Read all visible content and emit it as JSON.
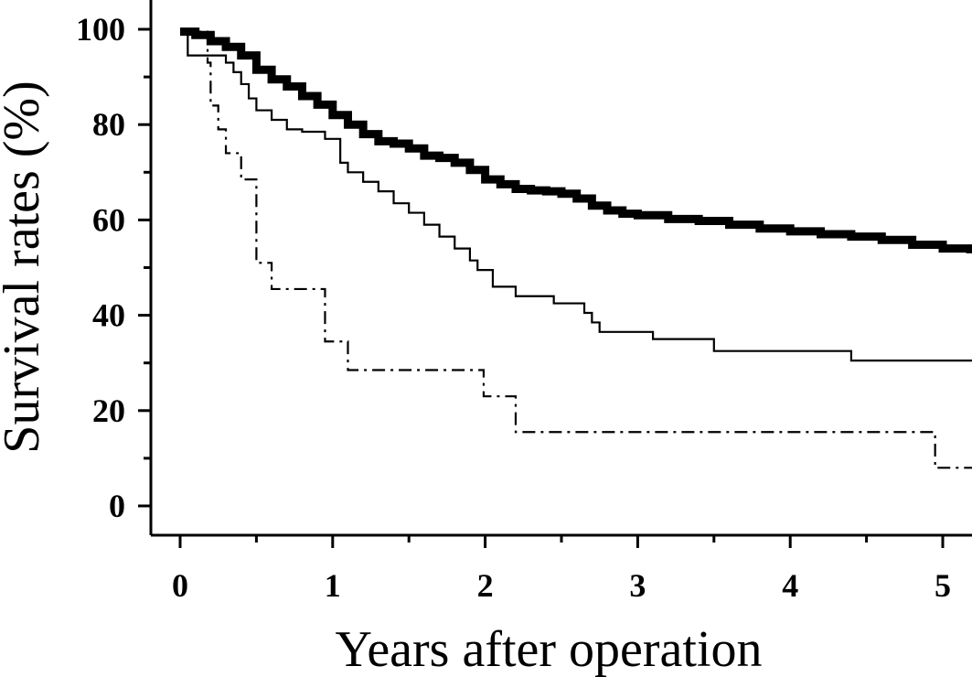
{
  "chart_data": {
    "type": "line",
    "title": "",
    "xlabel": "Years after operation",
    "ylabel": "Survival rates (%)",
    "xlim": [
      -0.2,
      5.2
    ],
    "ylim": [
      -5,
      105
    ],
    "x_ticks": [
      0,
      1,
      2,
      3,
      4,
      5
    ],
    "y_ticks": [
      0,
      20,
      40,
      60,
      80,
      100
    ],
    "y_minor_ticks": [
      10,
      30,
      50,
      70,
      90
    ],
    "grid": false,
    "legend": "none",
    "step": true,
    "series": [
      {
        "style": "thick-solid",
        "points": [
          [
            0,
            99.5
          ],
          [
            0.1,
            98.8
          ],
          [
            0.2,
            97.5
          ],
          [
            0.3,
            96.3
          ],
          [
            0.4,
            94.5
          ],
          [
            0.5,
            91.5
          ],
          [
            0.6,
            89.5
          ],
          [
            0.7,
            88
          ],
          [
            0.8,
            86
          ],
          [
            0.9,
            84.2
          ],
          [
            1.0,
            82
          ],
          [
            1.1,
            80
          ],
          [
            1.2,
            78
          ],
          [
            1.3,
            76.5
          ],
          [
            1.4,
            76
          ],
          [
            1.5,
            75
          ],
          [
            1.6,
            73.5
          ],
          [
            1.7,
            73
          ],
          [
            1.8,
            72
          ],
          [
            1.9,
            70.5
          ],
          [
            2.0,
            68.5
          ],
          [
            2.1,
            67.5
          ],
          [
            2.2,
            66.5
          ],
          [
            2.3,
            66.2
          ],
          [
            2.4,
            66
          ],
          [
            2.5,
            65.5
          ],
          [
            2.6,
            64.5
          ],
          [
            2.7,
            63
          ],
          [
            2.8,
            62
          ],
          [
            2.9,
            61.3
          ],
          [
            3.0,
            61
          ],
          [
            3.2,
            60.2
          ],
          [
            3.4,
            59.8
          ],
          [
            3.6,
            59
          ],
          [
            3.8,
            58.2
          ],
          [
            4.0,
            57.6
          ],
          [
            4.2,
            57
          ],
          [
            4.4,
            56.5
          ],
          [
            4.6,
            55.8
          ],
          [
            4.8,
            54.8
          ],
          [
            5.0,
            54
          ],
          [
            5.18,
            53
          ]
        ]
      },
      {
        "style": "thin-solid",
        "points": [
          [
            0,
            99.5
          ],
          [
            0.05,
            94.5
          ],
          [
            0.3,
            93
          ],
          [
            0.35,
            91
          ],
          [
            0.4,
            88.5
          ],
          [
            0.45,
            85.5
          ],
          [
            0.5,
            83
          ],
          [
            0.6,
            81
          ],
          [
            0.7,
            79
          ],
          [
            0.8,
            78.5
          ],
          [
            0.95,
            77
          ],
          [
            1.05,
            72
          ],
          [
            1.1,
            70
          ],
          [
            1.2,
            68
          ],
          [
            1.3,
            66
          ],
          [
            1.4,
            63.5
          ],
          [
            1.5,
            61.5
          ],
          [
            1.6,
            59
          ],
          [
            1.7,
            56.5
          ],
          [
            1.8,
            54
          ],
          [
            1.9,
            51.5
          ],
          [
            1.95,
            49.5
          ],
          [
            2.05,
            46
          ],
          [
            2.2,
            44
          ],
          [
            2.45,
            42.5
          ],
          [
            2.65,
            40.5
          ],
          [
            2.7,
            38.5
          ],
          [
            2.75,
            36.5
          ],
          [
            3.1,
            35
          ],
          [
            3.5,
            32.5
          ],
          [
            4.4,
            30.5
          ],
          [
            5.2,
            30.5
          ]
        ]
      },
      {
        "style": "dash-dot",
        "points": [
          [
            0,
            99.5
          ],
          [
            0.18,
            93
          ],
          [
            0.2,
            84
          ],
          [
            0.25,
            79
          ],
          [
            0.3,
            74
          ],
          [
            0.4,
            68.5
          ],
          [
            0.5,
            51
          ],
          [
            0.6,
            45.5
          ],
          [
            0.95,
            34.5
          ],
          [
            1.1,
            28.5
          ],
          [
            1.99,
            23
          ],
          [
            2.2,
            15.5
          ],
          [
            4.95,
            8
          ],
          [
            5.2,
            8
          ]
        ]
      }
    ]
  }
}
